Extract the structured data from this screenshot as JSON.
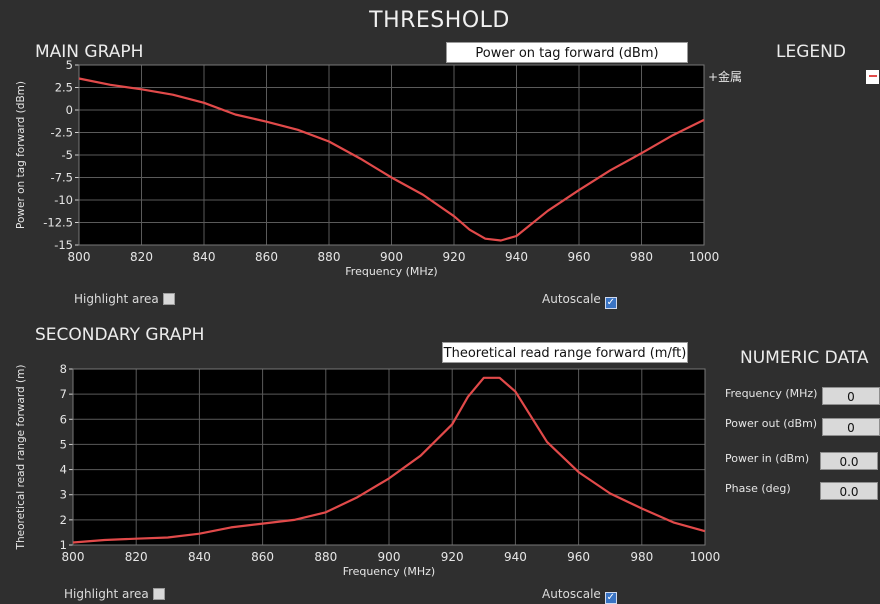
{
  "title": "THRESHOLD",
  "main_graph": {
    "heading": "MAIN GRAPH",
    "selector_value": "Power on tag forward (dBm)",
    "highlight_label": "Highlight area",
    "highlight_checked": false,
    "autoscale_label": "Autoscale",
    "autoscale_checked": true
  },
  "legend": {
    "heading": "LEGEND",
    "items": [
      {
        "label": "+金属",
        "color": "#e14a4a"
      }
    ]
  },
  "secondary_graph": {
    "heading": "SECONDARY GRAPH",
    "selector_value": "Theoretical read range forward (m/ft)",
    "highlight_label": "Highlight area",
    "highlight_checked": false,
    "autoscale_label": "Autoscale",
    "autoscale_checked": true
  },
  "numeric_data": {
    "heading": "NUMERIC DATA",
    "fields": [
      {
        "label": "Frequency (MHz)",
        "value": "0"
      },
      {
        "label": "Power out (dBm)",
        "value": "0"
      },
      {
        "label": "Power in (dBm)",
        "value": "0.0"
      },
      {
        "label": "Phase (deg)",
        "value": "0.0"
      }
    ]
  },
  "colors": {
    "background": "#2f2f2f",
    "plot_bg": "#000000",
    "grid": "#5a5a5a",
    "trace": "#e14a4a"
  },
  "chart_data": [
    {
      "type": "line",
      "xlabel": "Frequency (MHz)",
      "ylabel": "Power on tag forward (dBm)",
      "xlim": [
        800,
        1000
      ],
      "ylim": [
        -15,
        5
      ],
      "xticks": [
        800,
        820,
        840,
        860,
        880,
        900,
        920,
        940,
        960,
        980,
        1000
      ],
      "yticks": [
        5,
        2.5,
        0,
        -2.5,
        -5,
        -7.5,
        -10,
        -12.5,
        -15
      ],
      "ytick_labels": [
        "5",
        "2.5",
        "0",
        "-2.5",
        "-5",
        "-7.5",
        "-10",
        "-12.5",
        "-15"
      ],
      "grid": true,
      "series": [
        {
          "name": "+金属",
          "x": [
            800,
            810,
            820,
            830,
            840,
            850,
            860,
            870,
            880,
            890,
            900,
            910,
            920,
            925,
            930,
            935,
            940,
            950,
            960,
            970,
            980,
            990,
            1000
          ],
          "y": [
            3.5,
            2.8,
            2.3,
            1.7,
            0.8,
            -0.5,
            -1.3,
            -2.2,
            -3.5,
            -5.4,
            -7.5,
            -9.4,
            -11.8,
            -13.3,
            -14.3,
            -14.5,
            -14.0,
            -11.2,
            -8.9,
            -6.7,
            -4.8,
            -2.8,
            -1.1
          ]
        }
      ]
    },
    {
      "type": "line",
      "xlabel": "Frequency (MHz)",
      "ylabel": "Theoretical read range forward (m)",
      "xlim": [
        800,
        1000
      ],
      "ylim": [
        1,
        8
      ],
      "xticks": [
        800,
        820,
        840,
        860,
        880,
        900,
        920,
        940,
        960,
        980,
        1000
      ],
      "yticks": [
        8,
        7,
        6,
        5,
        4,
        3,
        2,
        1
      ],
      "ytick_labels": [
        "8",
        "7",
        "6",
        "5",
        "4",
        "3",
        "2",
        "1"
      ],
      "grid": true,
      "series": [
        {
          "name": "+金属",
          "x": [
            800,
            810,
            820,
            830,
            840,
            850,
            860,
            870,
            880,
            890,
            900,
            910,
            920,
            925,
            930,
            935,
            940,
            950,
            960,
            970,
            980,
            990,
            1000
          ],
          "y": [
            1.1,
            1.2,
            1.25,
            1.3,
            1.45,
            1.7,
            1.85,
            2.0,
            2.3,
            2.9,
            3.65,
            4.55,
            5.8,
            6.9,
            7.65,
            7.65,
            7.1,
            5.1,
            3.9,
            3.05,
            2.45,
            1.9,
            1.55
          ]
        }
      ]
    }
  ]
}
